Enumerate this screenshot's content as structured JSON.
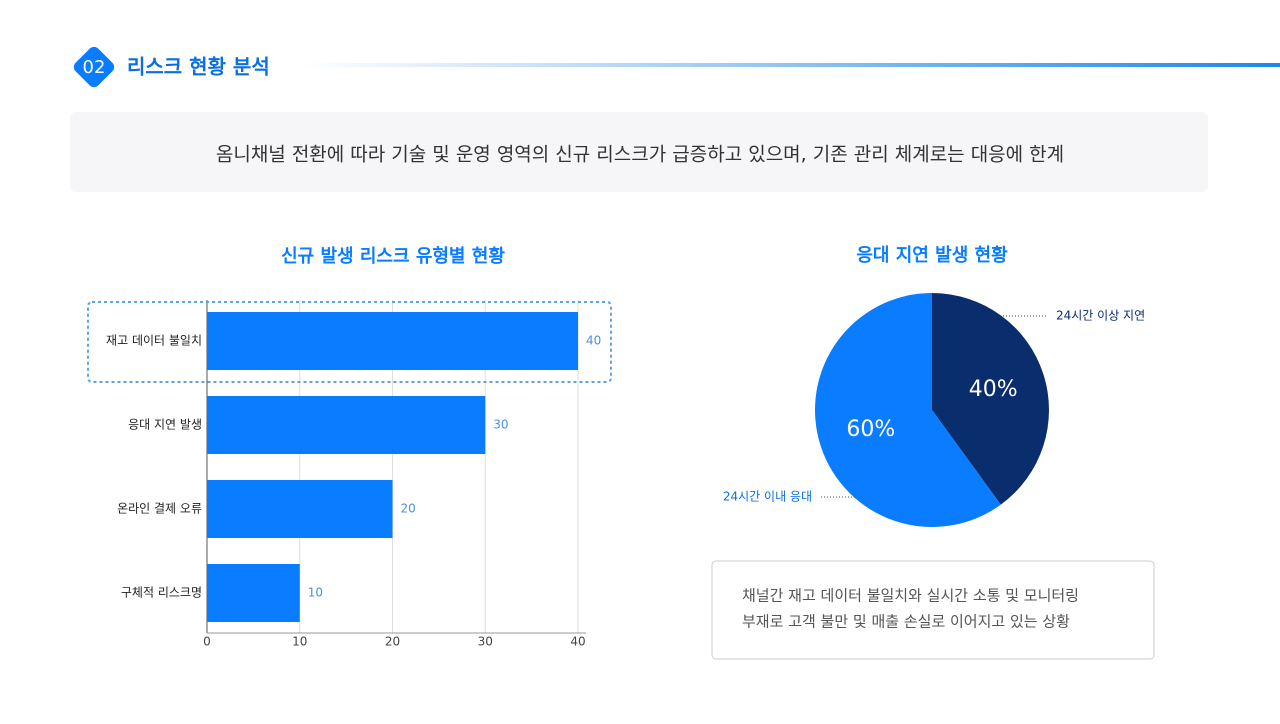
{
  "header": {
    "number": "02",
    "title": "리스크 현황 분석"
  },
  "summary": "옴니채널 전환에 따라 기술 및 운영 영역의 신규 리스크가 급증하고 있으며, 기존 관리 체계로는 대응에 한계",
  "chart_data": [
    {
      "type": "bar",
      "orientation": "horizontal",
      "title": "신규 발생 리스크 유형별 현황",
      "categories": [
        "재고 데이터 불일치",
        "응대 지연 발생",
        "온라인 결제 오류",
        "구체적 리스크명"
      ],
      "values": [
        40,
        30,
        20,
        10
      ],
      "color": "#0a7cff",
      "xlim": [
        0,
        40
      ],
      "xticks": [
        0,
        10,
        20,
        30,
        40
      ],
      "grid": true,
      "highlight": 0
    },
    {
      "type": "pie",
      "title": "응대 지연 발생 현황",
      "categories": [
        "24시간 이상 지연",
        "24시간 이내 응대"
      ],
      "values": [
        40,
        60
      ],
      "value_labels": [
        "40%",
        "60%"
      ],
      "colors": [
        "#0a2d6e",
        "#0a7cff"
      ]
    }
  ],
  "note": [
    "채널간 재고 데이터 불일치와 실시간 소통 및 모니터링",
    "부재로 고객 불만 및 매출 손실로 이어지고 있는 상황"
  ]
}
